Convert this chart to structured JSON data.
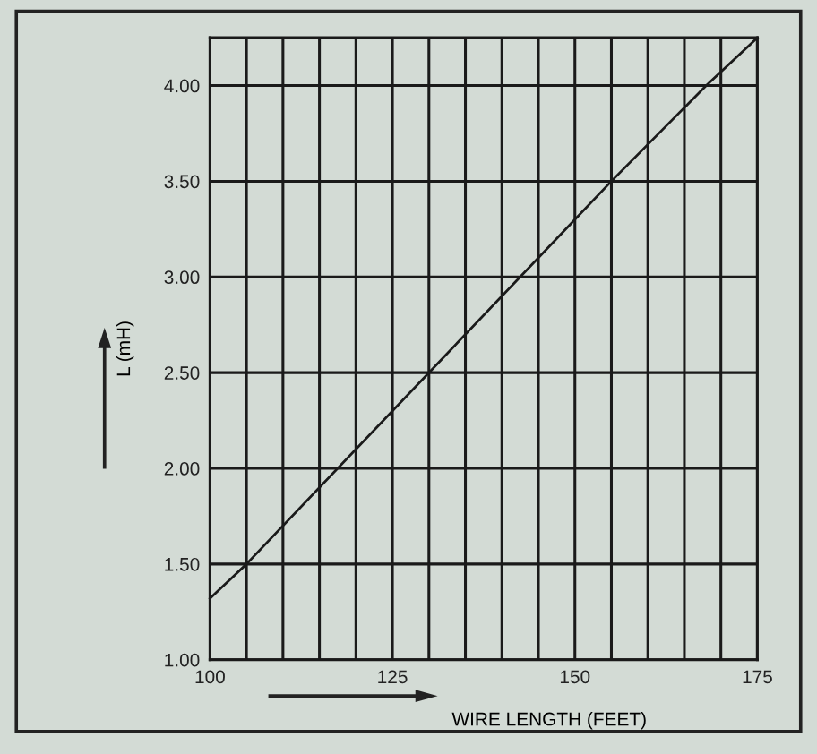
{
  "chart_data": {
    "type": "line",
    "xlabel": "WIRE LENGTH (FEET)",
    "ylabel": "L (mH)",
    "x": [
      100,
      105,
      155,
      168,
      175
    ],
    "series": [
      {
        "color": "#1a1a1a",
        "values": [
          1.32,
          1.5,
          3.5,
          4.0,
          4.25
        ]
      }
    ],
    "xlim": [
      100,
      175
    ],
    "ylim": [
      1.0,
      4.25
    ],
    "xticks": [
      100,
      {
        "value": 105,
        "label": null
      },
      {
        "value": 110,
        "label": null
      },
      {
        "value": 115,
        "label": null
      },
      {
        "value": 120,
        "label": null
      },
      125,
      {
        "value": 130,
        "label": null
      },
      {
        "value": 135,
        "label": null
      },
      {
        "value": 140,
        "label": null
      },
      {
        "value": 145,
        "label": null
      },
      150,
      {
        "value": 155,
        "label": null
      },
      {
        "value": 160,
        "label": null
      },
      {
        "value": 165,
        "label": null
      },
      {
        "value": 170,
        "label": null
      },
      175
    ],
    "yticks": [
      {
        "value": 1.0,
        "label": "1.00"
      },
      {
        "value": 1.5,
        "label": "1.50"
      },
      {
        "value": 2.0,
        "label": "2.00"
      },
      {
        "value": 2.5,
        "label": "2.50"
      },
      {
        "value": 3.0,
        "label": "3.00"
      },
      {
        "value": 3.5,
        "label": "3.50"
      },
      {
        "value": 4.0,
        "label": "4.00"
      }
    ],
    "grid": true,
    "marker": "none",
    "line_style": "solid"
  }
}
